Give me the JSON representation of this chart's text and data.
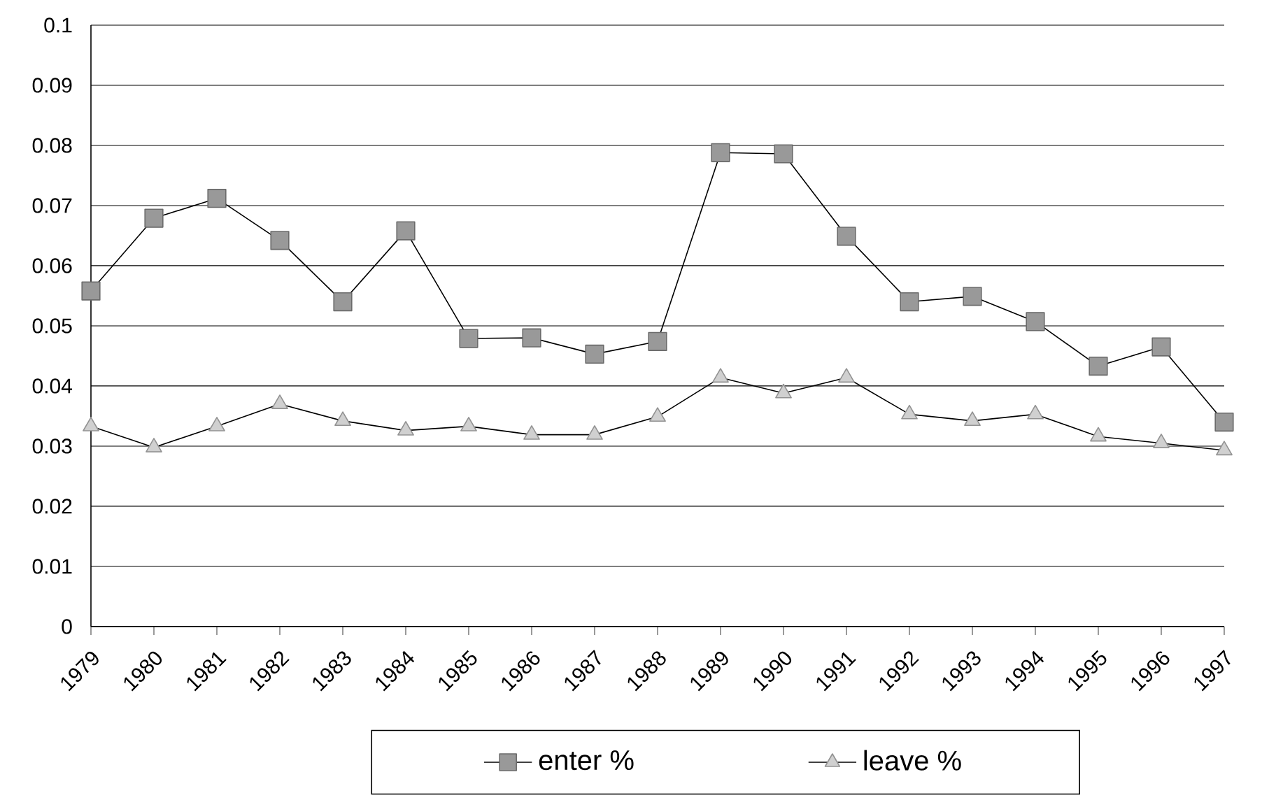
{
  "chart_data": {
    "type": "line",
    "categories": [
      "1979",
      "1980",
      "1981",
      "1982",
      "1983",
      "1984",
      "1985",
      "1986",
      "1987",
      "1988",
      "1989",
      "1990",
      "1991",
      "1992",
      "1993",
      "1994",
      "1995",
      "1996",
      "1997"
    ],
    "series": [
      {
        "name": "enter %",
        "color": "#999999",
        "marker": "square",
        "values": [
          0.0558,
          0.0679,
          0.0712,
          0.0642,
          0.054,
          0.0658,
          0.0479,
          0.048,
          0.0453,
          0.0474,
          0.0788,
          0.0786,
          0.0649,
          0.054,
          0.0549,
          0.0507,
          0.0433,
          0.0465,
          0.034
        ]
      },
      {
        "name": "leave %",
        "color": "#d0d0d0",
        "marker": "triangle",
        "values": [
          0.0333,
          0.0298,
          0.0333,
          0.037,
          0.0342,
          0.0326,
          0.0333,
          0.0319,
          0.0319,
          0.0349,
          0.0414,
          0.0388,
          0.0414,
          0.0353,
          0.0342,
          0.0353,
          0.0316,
          0.0305,
          0.0293
        ]
      }
    ],
    "ylim": [
      0,
      0.1
    ],
    "yticks": [
      0,
      0.01,
      0.02,
      0.03,
      0.04,
      0.05,
      0.06,
      0.07,
      0.08,
      0.09,
      0.1
    ],
    "grid": "y",
    "legend": "bottom",
    "line_style": "solid"
  }
}
